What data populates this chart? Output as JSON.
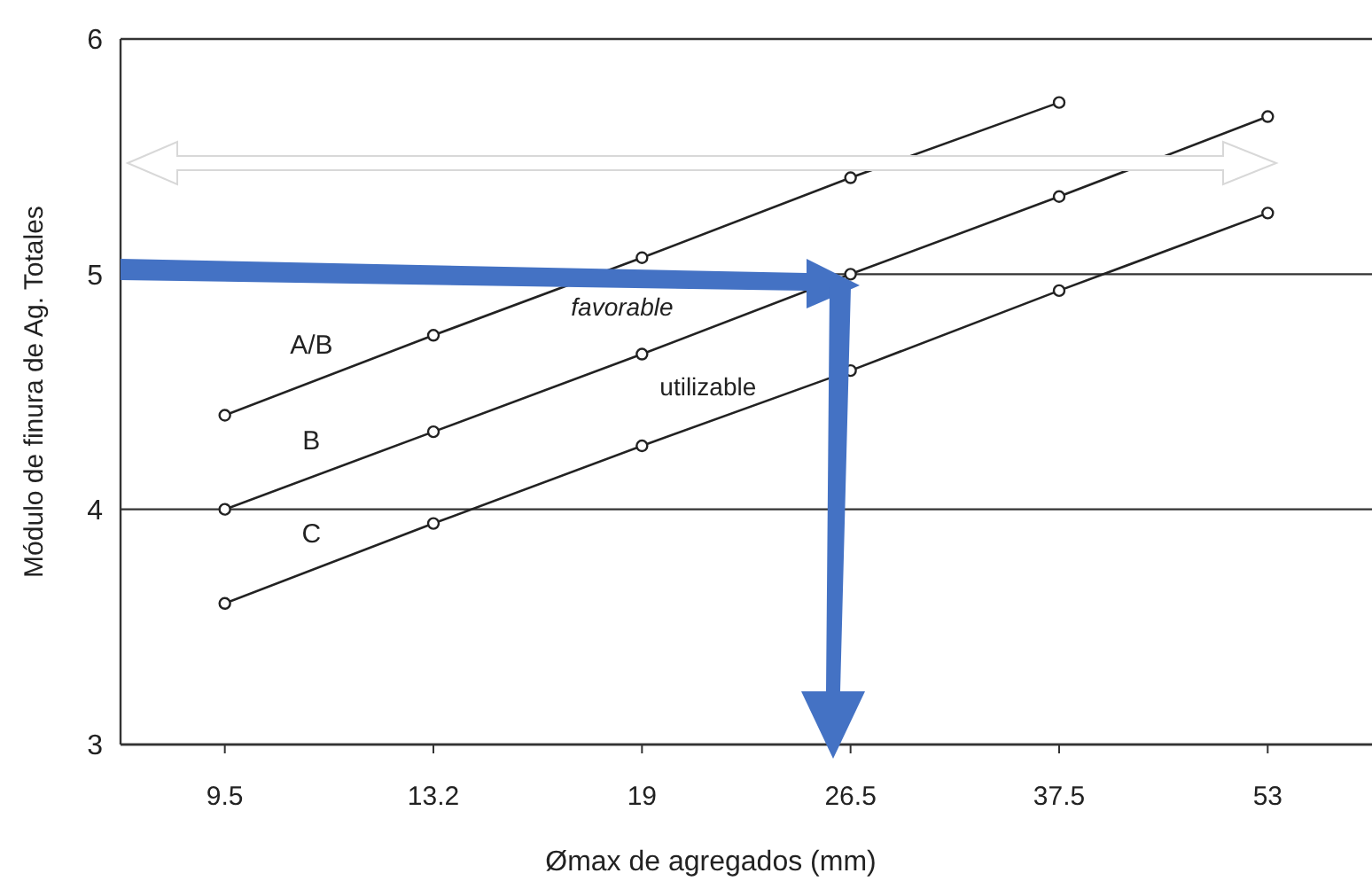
{
  "chart_data": {
    "type": "line",
    "ylabel": "Módulo de finura de Ag. Totales",
    "xlabel": "Ømax de agregados (mm)",
    "categories": [
      "9.5",
      "13.2",
      "19",
      "26.5",
      "37.5",
      "53"
    ],
    "ylim": [
      3,
      6
    ],
    "yticks": [
      3,
      4,
      5,
      6
    ],
    "grid": "y",
    "marker": "circle",
    "line_style": "solid",
    "series": [
      {
        "name": "A/B",
        "color": "#222222",
        "values": [
          4.4,
          4.74,
          5.07,
          5.41,
          5.73,
          null
        ]
      },
      {
        "name": "B",
        "color": "#222222",
        "values": [
          4.0,
          4.33,
          4.66,
          5.0,
          5.33,
          5.67
        ]
      },
      {
        "name": "C",
        "color": "#222222",
        "values": [
          3.6,
          3.94,
          4.27,
          4.59,
          4.93,
          5.26
        ]
      }
    ],
    "annotations": [
      "favorable",
      "utilizable"
    ]
  }
}
